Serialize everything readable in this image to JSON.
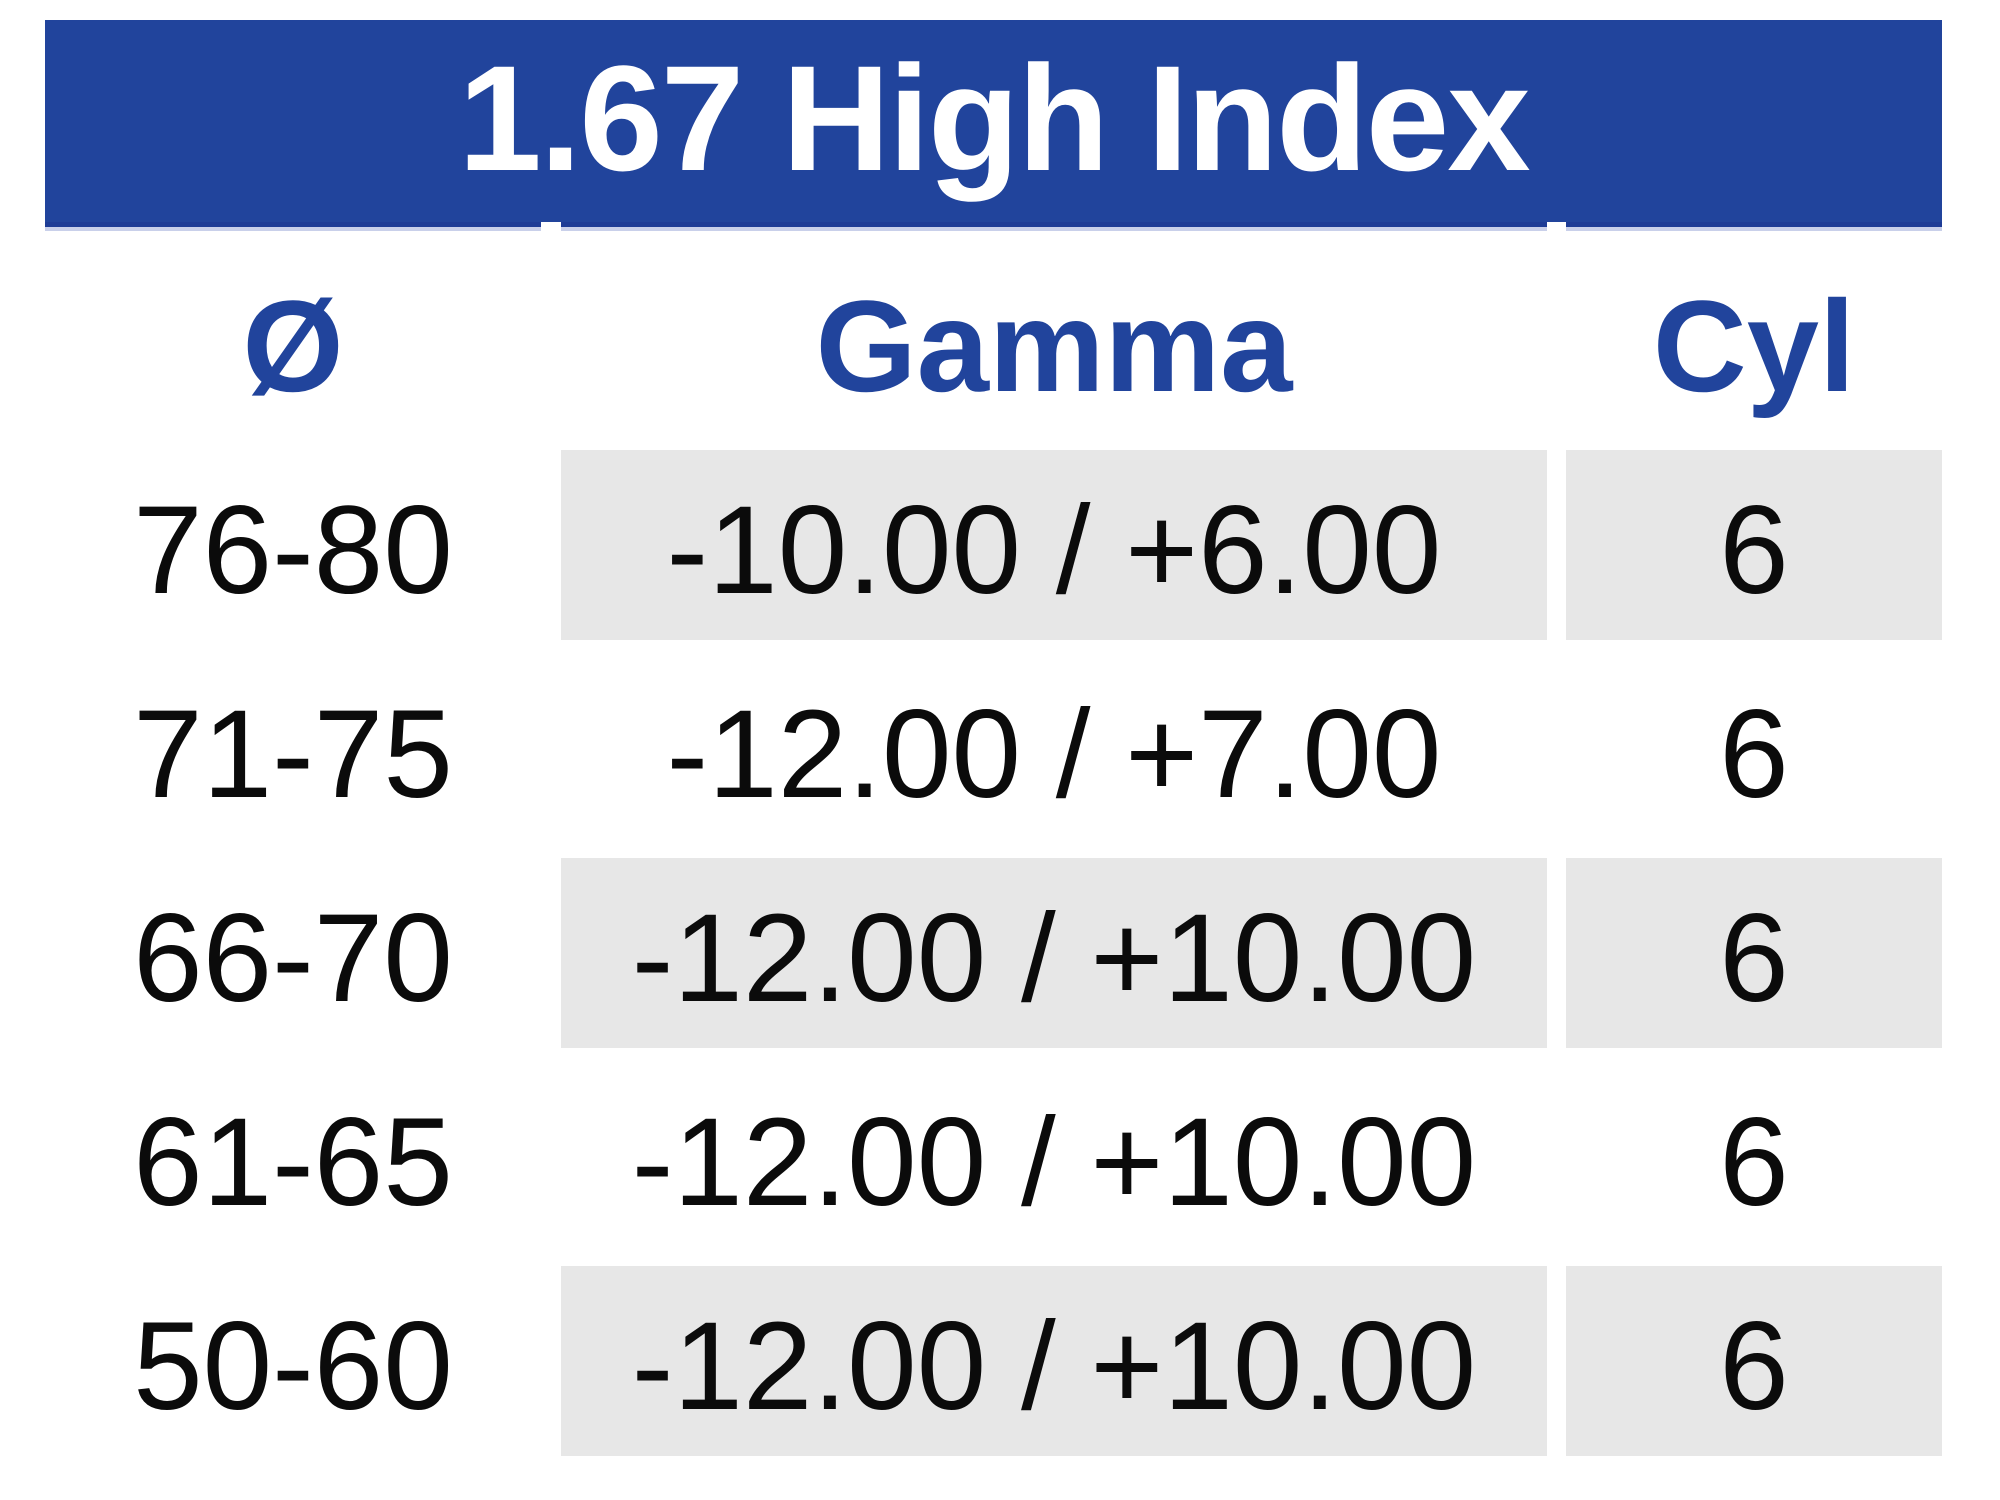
{
  "table": {
    "title": "1.67 High Index",
    "columns": [
      {
        "label": "Ø"
      },
      {
        "label": "Gamma"
      },
      {
        "label": "Cyl"
      }
    ],
    "rows": [
      {
        "diameter": "76-80",
        "gamma": "-10.00 / +6.00",
        "cyl": "6"
      },
      {
        "diameter": "71-75",
        "gamma": "-12.00 / +7.00",
        "cyl": "6"
      },
      {
        "diameter": "66-70",
        "gamma": "-12.00 / +10.00",
        "cyl": "6"
      },
      {
        "diameter": "61-65",
        "gamma": "-12.00 / +10.00",
        "cyl": "6"
      },
      {
        "diameter": "50-60",
        "gamma": "-12.00 / +10.00",
        "cyl": "6"
      }
    ],
    "colors": {
      "band_blue": "#21449c",
      "band_edge_navy": "#1e3c96",
      "header_text_blue": "#21449c",
      "shaded_cell_gray": "#e7e7e7",
      "title_text": "#ffffff",
      "data_text": "#0b0b0b"
    }
  }
}
